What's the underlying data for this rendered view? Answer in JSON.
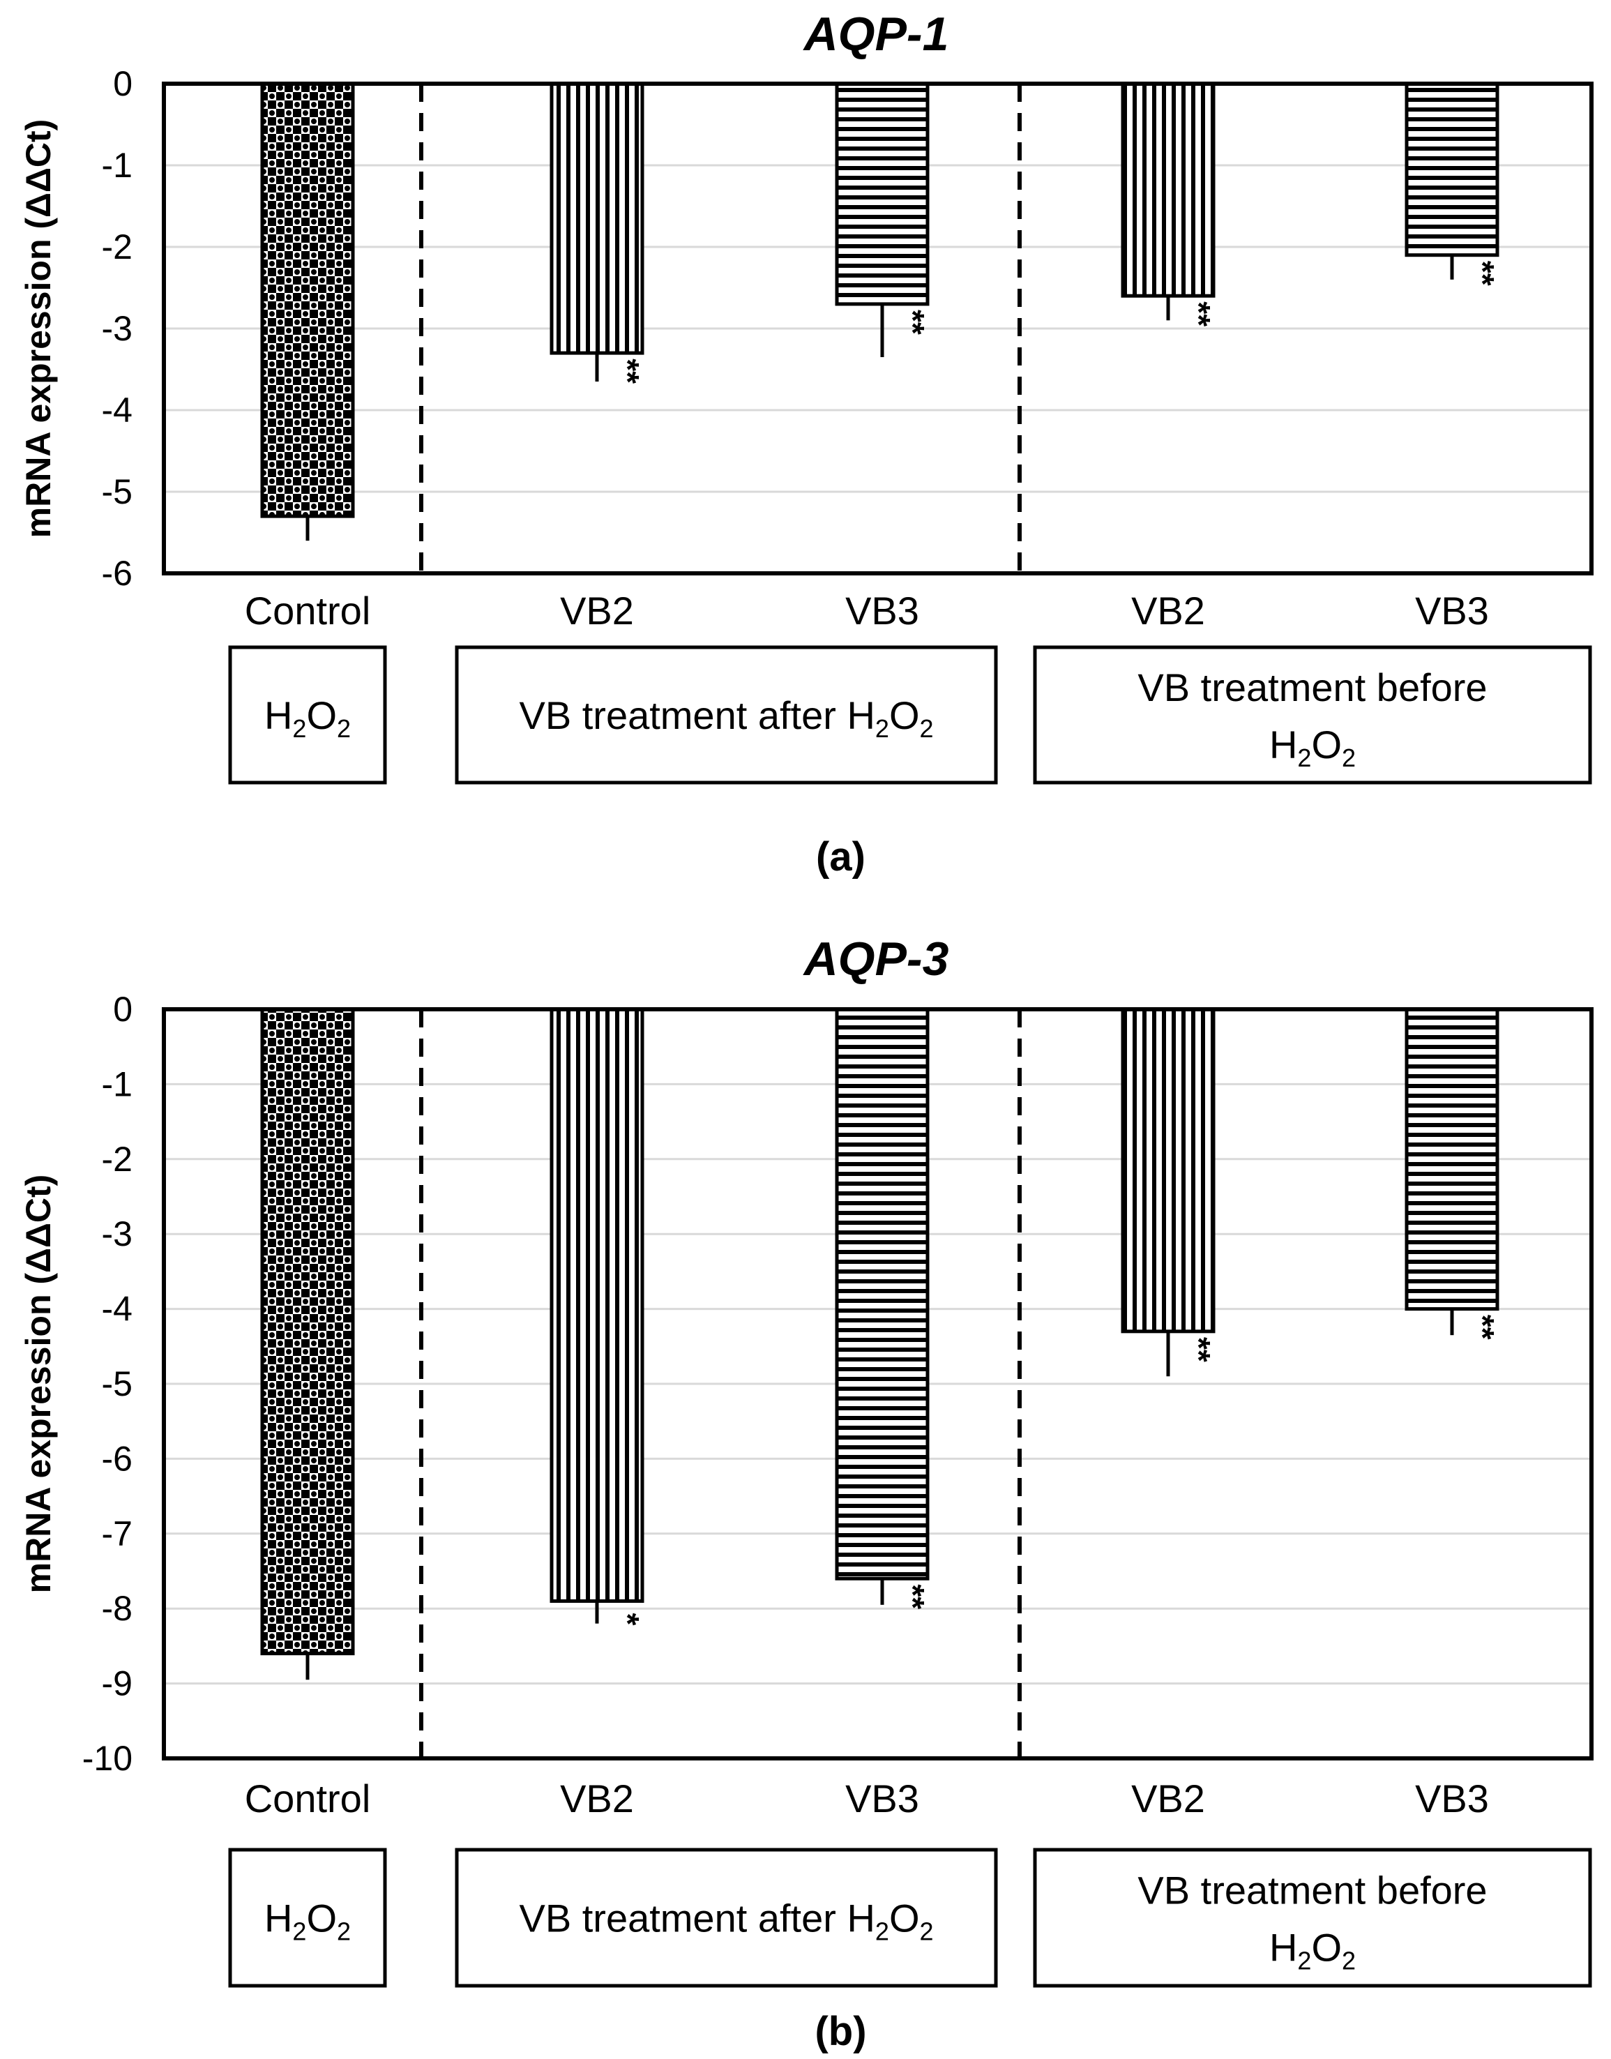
{
  "colors": {
    "ink": "#000000",
    "grid": "#d9d9d9",
    "background": "#ffffff"
  },
  "chart_data": [
    {
      "type": "bar",
      "panel_label": "(a)",
      "title": "AQP-1",
      "ylabel": "mRNA expression (ΔΔCt)",
      "xlabel": "",
      "ylim": [
        -6,
        0
      ],
      "yticks": [
        0,
        -1,
        -2,
        -3,
        -4,
        -5,
        -6
      ],
      "grid": true,
      "categories": [
        "Control",
        "VB2",
        "VB3",
        "VB2",
        "VB3"
      ],
      "values": [
        -5.3,
        -3.3,
        -2.7,
        -2.6,
        -2.1
      ],
      "errors": [
        0.3,
        0.35,
        0.65,
        0.3,
        0.3
      ],
      "significance": [
        "",
        "**",
        "**",
        "**",
        "**"
      ],
      "patterns": [
        "checker",
        "vertical",
        "horizontal",
        "vertical",
        "horizontal"
      ],
      "groups": [
        {
          "text": "H",
          "sub1": "2",
          "mid": "O",
          "sub2": "2",
          "tail": "",
          "covers": [
            0
          ]
        },
        {
          "text": "VB treatment after H",
          "sub1": "2",
          "mid": "O",
          "sub2": "2",
          "tail": "",
          "covers": [
            1,
            2
          ]
        },
        {
          "line1": "VB treatment before",
          "text": "H",
          "sub1": "2",
          "mid": "O",
          "sub2": "2",
          "tail": "",
          "covers": [
            3,
            4
          ]
        }
      ]
    },
    {
      "type": "bar",
      "panel_label": "(b)",
      "title": "AQP-3",
      "ylabel": "mRNA expression (ΔΔCt)",
      "xlabel": "",
      "ylim": [
        -10,
        0
      ],
      "yticks": [
        0,
        -1,
        -2,
        -3,
        -4,
        -5,
        -6,
        -7,
        -8,
        -9,
        -10
      ],
      "grid": true,
      "categories": [
        "Control",
        "VB2",
        "VB3",
        "VB2",
        "VB3"
      ],
      "values": [
        -8.6,
        -7.9,
        -7.6,
        -4.3,
        -4.0
      ],
      "errors": [
        0.35,
        0.3,
        0.35,
        0.6,
        0.35
      ],
      "significance": [
        "",
        "*",
        "**",
        "**",
        "**"
      ],
      "patterns": [
        "checker",
        "vertical",
        "horizontal",
        "vertical",
        "horizontal"
      ],
      "groups": [
        {
          "text": "H",
          "sub1": "2",
          "mid": "O",
          "sub2": "2",
          "tail": "",
          "covers": [
            0
          ]
        },
        {
          "text": "VB treatment after H",
          "sub1": "2",
          "mid": "O",
          "sub2": "2",
          "tail": "",
          "covers": [
            1,
            2
          ]
        },
        {
          "line1": "VB treatment before",
          "text": "H",
          "sub1": "2",
          "mid": "O",
          "sub2": "2",
          "tail": "",
          "covers": [
            3,
            4
          ]
        }
      ]
    }
  ]
}
